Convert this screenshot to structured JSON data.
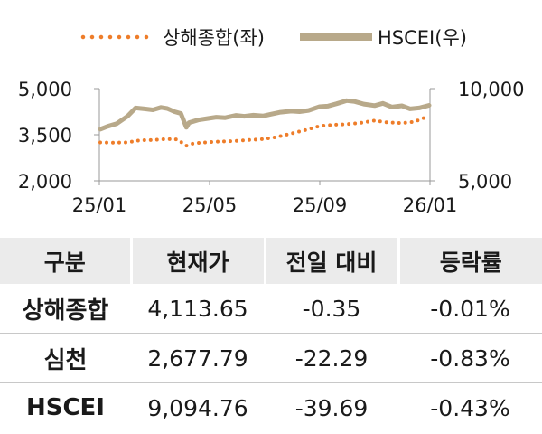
{
  "chart_data": {
    "type": "line",
    "legend_position": "top",
    "grid": false,
    "x_tick_labels": [
      "25/01",
      "25/05",
      "25/09",
      "26/01"
    ],
    "x_range": [
      "2025-01",
      "2026-01"
    ],
    "left_axis": {
      "range": [
        2000,
        5000
      ],
      "ticks": [
        2000,
        3500,
        5000
      ],
      "tick_labels": [
        "2,000",
        "3,500",
        "5,000"
      ]
    },
    "right_axis": {
      "range": [
        5000,
        10000
      ],
      "ticks": [
        5000,
        10000
      ],
      "tick_labels": [
        "5,000",
        "10,000"
      ]
    },
    "series": [
      {
        "name": "상해종합(좌)",
        "axis": "left",
        "style": "dotted",
        "color": "#ee7d2a",
        "x": [
          "2025-01-02",
          "2025-01-16",
          "2025-02-01",
          "2025-02-15",
          "2025-03-01",
          "2025-03-15",
          "2025-03-28",
          "2025-04-07",
          "2025-04-15",
          "2025-05-01",
          "2025-05-15",
          "2025-06-01",
          "2025-06-15",
          "2025-07-01",
          "2025-07-15",
          "2025-08-01",
          "2025-08-15",
          "2025-09-01",
          "2025-09-15",
          "2025-10-01",
          "2025-10-15",
          "2025-11-01",
          "2025-11-15",
          "2025-12-01",
          "2025-12-15",
          "2025-12-31"
        ],
        "values": [
          3250,
          3240,
          3250,
          3320,
          3330,
          3360,
          3350,
          3140,
          3220,
          3260,
          3280,
          3300,
          3330,
          3360,
          3420,
          3540,
          3640,
          3780,
          3820,
          3840,
          3880,
          3960,
          3900,
          3880,
          3920,
          4114
        ]
      },
      {
        "name": "HSCEI(우)",
        "axis": "right",
        "style": "solid",
        "color": "#b8a98a",
        "x": [
          "2025-01-02",
          "2025-01-10",
          "2025-01-20",
          "2025-02-01",
          "2025-02-10",
          "2025-02-20",
          "2025-03-01",
          "2025-03-10",
          "2025-03-17",
          "2025-03-25",
          "2025-04-01",
          "2025-04-07",
          "2025-04-10",
          "2025-04-20",
          "2025-05-01",
          "2025-05-10",
          "2025-05-20",
          "2025-06-01",
          "2025-06-10",
          "2025-06-20",
          "2025-07-01",
          "2025-07-10",
          "2025-07-20",
          "2025-08-01",
          "2025-08-10",
          "2025-08-20",
          "2025-09-01",
          "2025-09-10",
          "2025-09-20",
          "2025-10-01",
          "2025-10-10",
          "2025-10-20",
          "2025-11-01",
          "2025-11-10",
          "2025-11-20",
          "2025-12-01",
          "2025-12-10",
          "2025-12-20",
          "2025-12-31"
        ],
        "values": [
          7800,
          7950,
          8100,
          8500,
          8950,
          8900,
          8850,
          8980,
          8920,
          8750,
          8650,
          7900,
          8150,
          8300,
          8380,
          8450,
          8420,
          8550,
          8500,
          8560,
          8520,
          8620,
          8720,
          8780,
          8750,
          8820,
          9020,
          9050,
          9180,
          9350,
          9300,
          9160,
          9080,
          9200,
          9000,
          9070,
          8900,
          8950,
          9095
        ]
      }
    ]
  },
  "table": {
    "headers": [
      "구분",
      "현재가",
      "전일 대비",
      "등락률"
    ],
    "rows": [
      [
        "상해종합",
        "4,113.65",
        "-0.35",
        "-0.01%"
      ],
      [
        "심천",
        "2,677.79",
        "-22.29",
        "-0.83%"
      ],
      [
        "HSCEI",
        "9,094.76",
        "-39.69",
        "-0.43%"
      ]
    ]
  }
}
